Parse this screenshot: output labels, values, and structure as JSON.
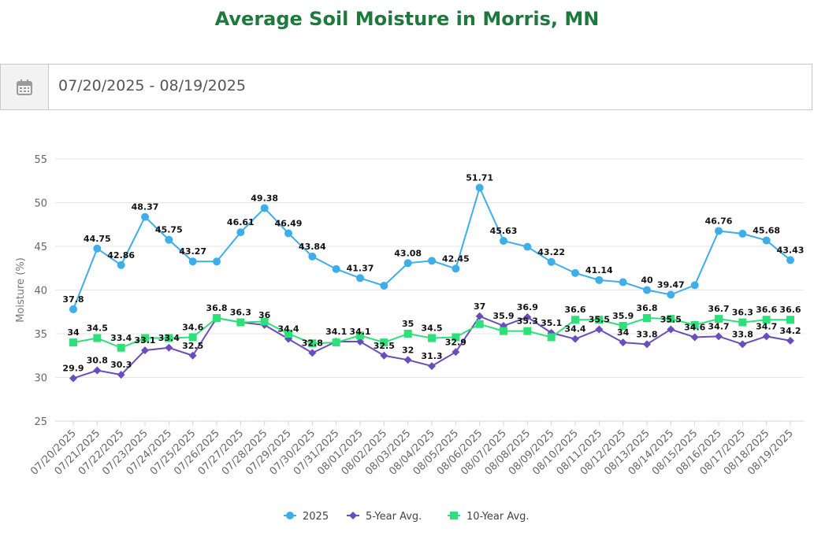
{
  "header": {
    "title": "Average Soil Moisture in Morris, MN"
  },
  "date_range": {
    "value": "07/20/2025 - 08/19/2025",
    "icon": "calendar-icon"
  },
  "chart_data": {
    "type": "line",
    "title": "Average Soil Moisture in Morris, MN",
    "xlabel": "",
    "ylabel": "Moisture (%)",
    "ylim": [
      25,
      55
    ],
    "yticks": [
      25,
      30,
      35,
      40,
      45,
      50,
      55
    ],
    "grid": true,
    "legend_position": "bottom-center",
    "categories": [
      "07/20/2025",
      "07/21/2025",
      "07/22/2025",
      "07/23/2025",
      "07/24/2025",
      "07/25/2025",
      "07/26/2025",
      "07/27/2025",
      "07/28/2025",
      "07/29/2025",
      "07/30/2025",
      "07/31/2025",
      "08/01/2025",
      "08/02/2025",
      "08/03/2025",
      "08/04/2025",
      "08/05/2025",
      "08/06/2025",
      "08/07/2025",
      "08/08/2025",
      "08/09/2025",
      "08/10/2025",
      "08/11/2025",
      "08/12/2025",
      "08/13/2025",
      "08/14/2025",
      "08/15/2025",
      "08/16/2025",
      "08/17/2025",
      "08/18/2025",
      "08/19/2025"
    ],
    "series": [
      {
        "name": "2025",
        "color": "#3daee9",
        "marker": "circle",
        "values": [
          37.8,
          44.75,
          42.86,
          48.37,
          45.75,
          43.27,
          43.27,
          46.61,
          49.38,
          46.49,
          43.84,
          42.4,
          41.37,
          40.5,
          43.08,
          43.35,
          42.45,
          51.71,
          45.63,
          44.95,
          43.22,
          41.95,
          41.14,
          40.9,
          40,
          39.47,
          40.55,
          46.76,
          46.45,
          45.68,
          43.43
        ],
        "labels": [
          "37.8",
          "44.75",
          "42.86",
          "48.37",
          "45.75",
          "43.27",
          "",
          "46.61",
          "49.38",
          "46.49",
          "43.84",
          "",
          "41.37",
          "",
          "43.08",
          "",
          "42.45",
          "51.71",
          "45.63",
          "",
          "43.22",
          "",
          "41.14",
          "",
          "40",
          "39.47",
          "",
          "46.76",
          "",
          "45.68",
          "43.43"
        ]
      },
      {
        "name": "5-Year Avg.",
        "color": "#6a4dbc",
        "marker": "diamond",
        "values": [
          29.9,
          30.8,
          30.3,
          33.1,
          33.4,
          32.5,
          36.8,
          36.3,
          36,
          34.4,
          32.8,
          34.1,
          34.1,
          32.5,
          32,
          31.3,
          32.9,
          37,
          35.9,
          36.9,
          35.1,
          34.4,
          35.5,
          34,
          33.8,
          35.5,
          34.6,
          34.7,
          33.8,
          34.7,
          34.2
        ],
        "labels": [
          "29.9",
          "30.8",
          "30.3",
          "33.1",
          "33.4",
          "32.5",
          "36.8",
          "36.3",
          "36",
          "34.4",
          "32.8",
          "34.1",
          "34.1",
          "32.5",
          "32",
          "31.3",
          "32.9",
          "37",
          "35.9",
          "36.9",
          "35.1",
          "34.4",
          "35.5",
          "34",
          "33.8",
          "35.5",
          "34.6",
          "34.7",
          "33.8",
          "34.7",
          "34.2"
        ]
      },
      {
        "name": "10-Year Avg.",
        "color": "#2ee07a",
        "marker": "square",
        "values": [
          34,
          34.5,
          33.4,
          34.5,
          34.5,
          34.6,
          36.8,
          36.3,
          36.4,
          35,
          33.9,
          34,
          34.8,
          34,
          35,
          34.5,
          34.6,
          36.1,
          35.3,
          35.3,
          34.6,
          36.6,
          36.6,
          35.9,
          36.8,
          36.7,
          36,
          36.7,
          36.3,
          36.6,
          36.6
        ],
        "labels": [
          "34",
          "34.5",
          "33.4",
          "",
          "",
          "34.6",
          "",
          "",
          "",
          "",
          "",
          "",
          "",
          "",
          "35",
          "34.5",
          "",
          "",
          "",
          "35.3",
          "",
          "36.6",
          "",
          "35.9",
          "36.8",
          "",
          "",
          "36.7",
          "36.3",
          "36.6",
          "36.6"
        ]
      }
    ]
  }
}
